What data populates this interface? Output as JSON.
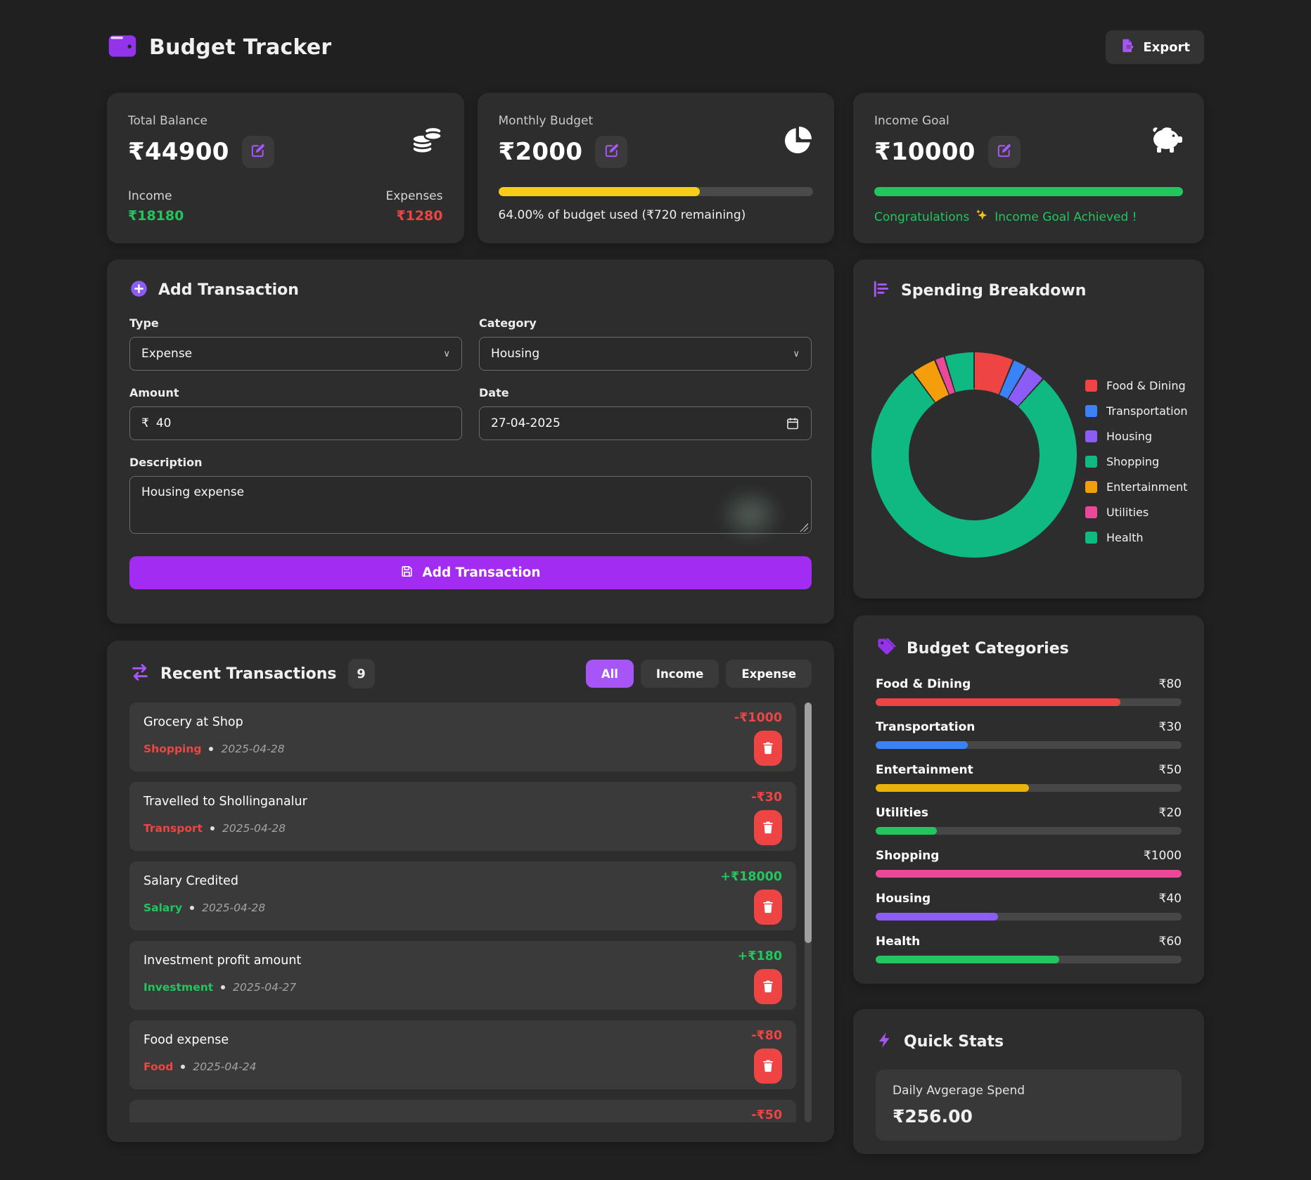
{
  "header": {
    "app_title": "Budget Tracker",
    "export_label": "Export"
  },
  "stat_cards": {
    "balance": {
      "label": "Total Balance",
      "value": "₹44900",
      "income_label": "Income",
      "income_value": "₹18180",
      "expenses_label": "Expenses",
      "expenses_value": "₹1280"
    },
    "budget": {
      "label": "Monthly Budget",
      "value": "₹2000",
      "percent_used": 64,
      "status": "64.00% of budget used (₹720 remaining)"
    },
    "goal": {
      "label": "Income Goal",
      "value": "₹10000",
      "percent": 100,
      "congrats_prefix": "Congratulations",
      "congrats_suffix": "Income Goal Achieved !"
    }
  },
  "add_transaction": {
    "title": "Add Transaction",
    "type_label": "Type",
    "type_value": "Expense",
    "category_label": "Category",
    "category_value": "Housing",
    "amount_label": "Amount",
    "amount_prefix": "₹",
    "amount_value": "40",
    "date_label": "Date",
    "date_value": "27-04-2025",
    "description_label": "Description",
    "description_value": "Housing expense",
    "submit_label": "Add Transaction"
  },
  "chart_data": {
    "type": "pie",
    "donut": true,
    "title": "Spending Breakdown",
    "categories": [
      "Food & Dining",
      "Transportation",
      "Housing",
      "Shopping",
      "Entertainment",
      "Utilities",
      "Health"
    ],
    "values": [
      80,
      30,
      40,
      1000,
      50,
      20,
      60
    ],
    "colors": [
      "#ef4444",
      "#3b82f6",
      "#8b5cf6",
      "#10b981",
      "#f59e0b",
      "#ec4899",
      "#10b981"
    ],
    "legend_position": "right",
    "total": 1280
  },
  "transactions": {
    "title": "Recent Transactions",
    "count": "9",
    "filters": [
      {
        "label": "All",
        "active": true
      },
      {
        "label": "Income",
        "active": false
      },
      {
        "label": "Expense",
        "active": false
      }
    ],
    "items": [
      {
        "description": "Grocery at Shop",
        "category": "Shopping",
        "date": "2025-04-28",
        "amount": "-₹1000",
        "type": "expense"
      },
      {
        "description": "Travelled to Shollinganalur",
        "category": "Transport",
        "date": "2025-04-28",
        "amount": "-₹30",
        "type": "expense"
      },
      {
        "description": "Salary Credited",
        "category": "Salary",
        "date": "2025-04-28",
        "amount": "+₹18000",
        "type": "income"
      },
      {
        "description": "Investment profit amount",
        "category": "Investment",
        "date": "2025-04-27",
        "amount": "+₹180",
        "type": "income"
      },
      {
        "description": "Food expense",
        "category": "Food",
        "date": "2025-04-24",
        "amount": "-₹80",
        "type": "expense"
      },
      {
        "description": "",
        "category": "",
        "date": "",
        "amount": "-₹50",
        "type": "expense"
      }
    ]
  },
  "budget_categories": {
    "title": "Budget Categories",
    "items": [
      {
        "name": "Food & Dining",
        "value": "₹80",
        "fill": 80,
        "color": "#ef4444"
      },
      {
        "name": "Transportation",
        "value": "₹30",
        "fill": 30,
        "color": "#3b82f6"
      },
      {
        "name": "Entertainment",
        "value": "₹50",
        "fill": 50,
        "color": "#eab308"
      },
      {
        "name": "Utilities",
        "value": "₹20",
        "fill": 20,
        "color": "#22c55e"
      },
      {
        "name": "Shopping",
        "value": "₹1000",
        "fill": 100,
        "color": "#ec4899"
      },
      {
        "name": "Housing",
        "value": "₹40",
        "fill": 40,
        "color": "#8b5cf6"
      },
      {
        "name": "Health",
        "value": "₹60",
        "fill": 60,
        "color": "#22c55e"
      }
    ]
  },
  "quick_stats": {
    "title": "Quick Stats",
    "items": [
      {
        "label": "Daily Avgerage Spend",
        "value": "₹256.00"
      }
    ]
  },
  "colors": {
    "accent": "#a855f7",
    "income": "#22c55e",
    "expense": "#ef4444",
    "budget_bar": "#facc15",
    "goal_bar": "#22c55e",
    "card_bg": "#2d2d2d"
  }
}
